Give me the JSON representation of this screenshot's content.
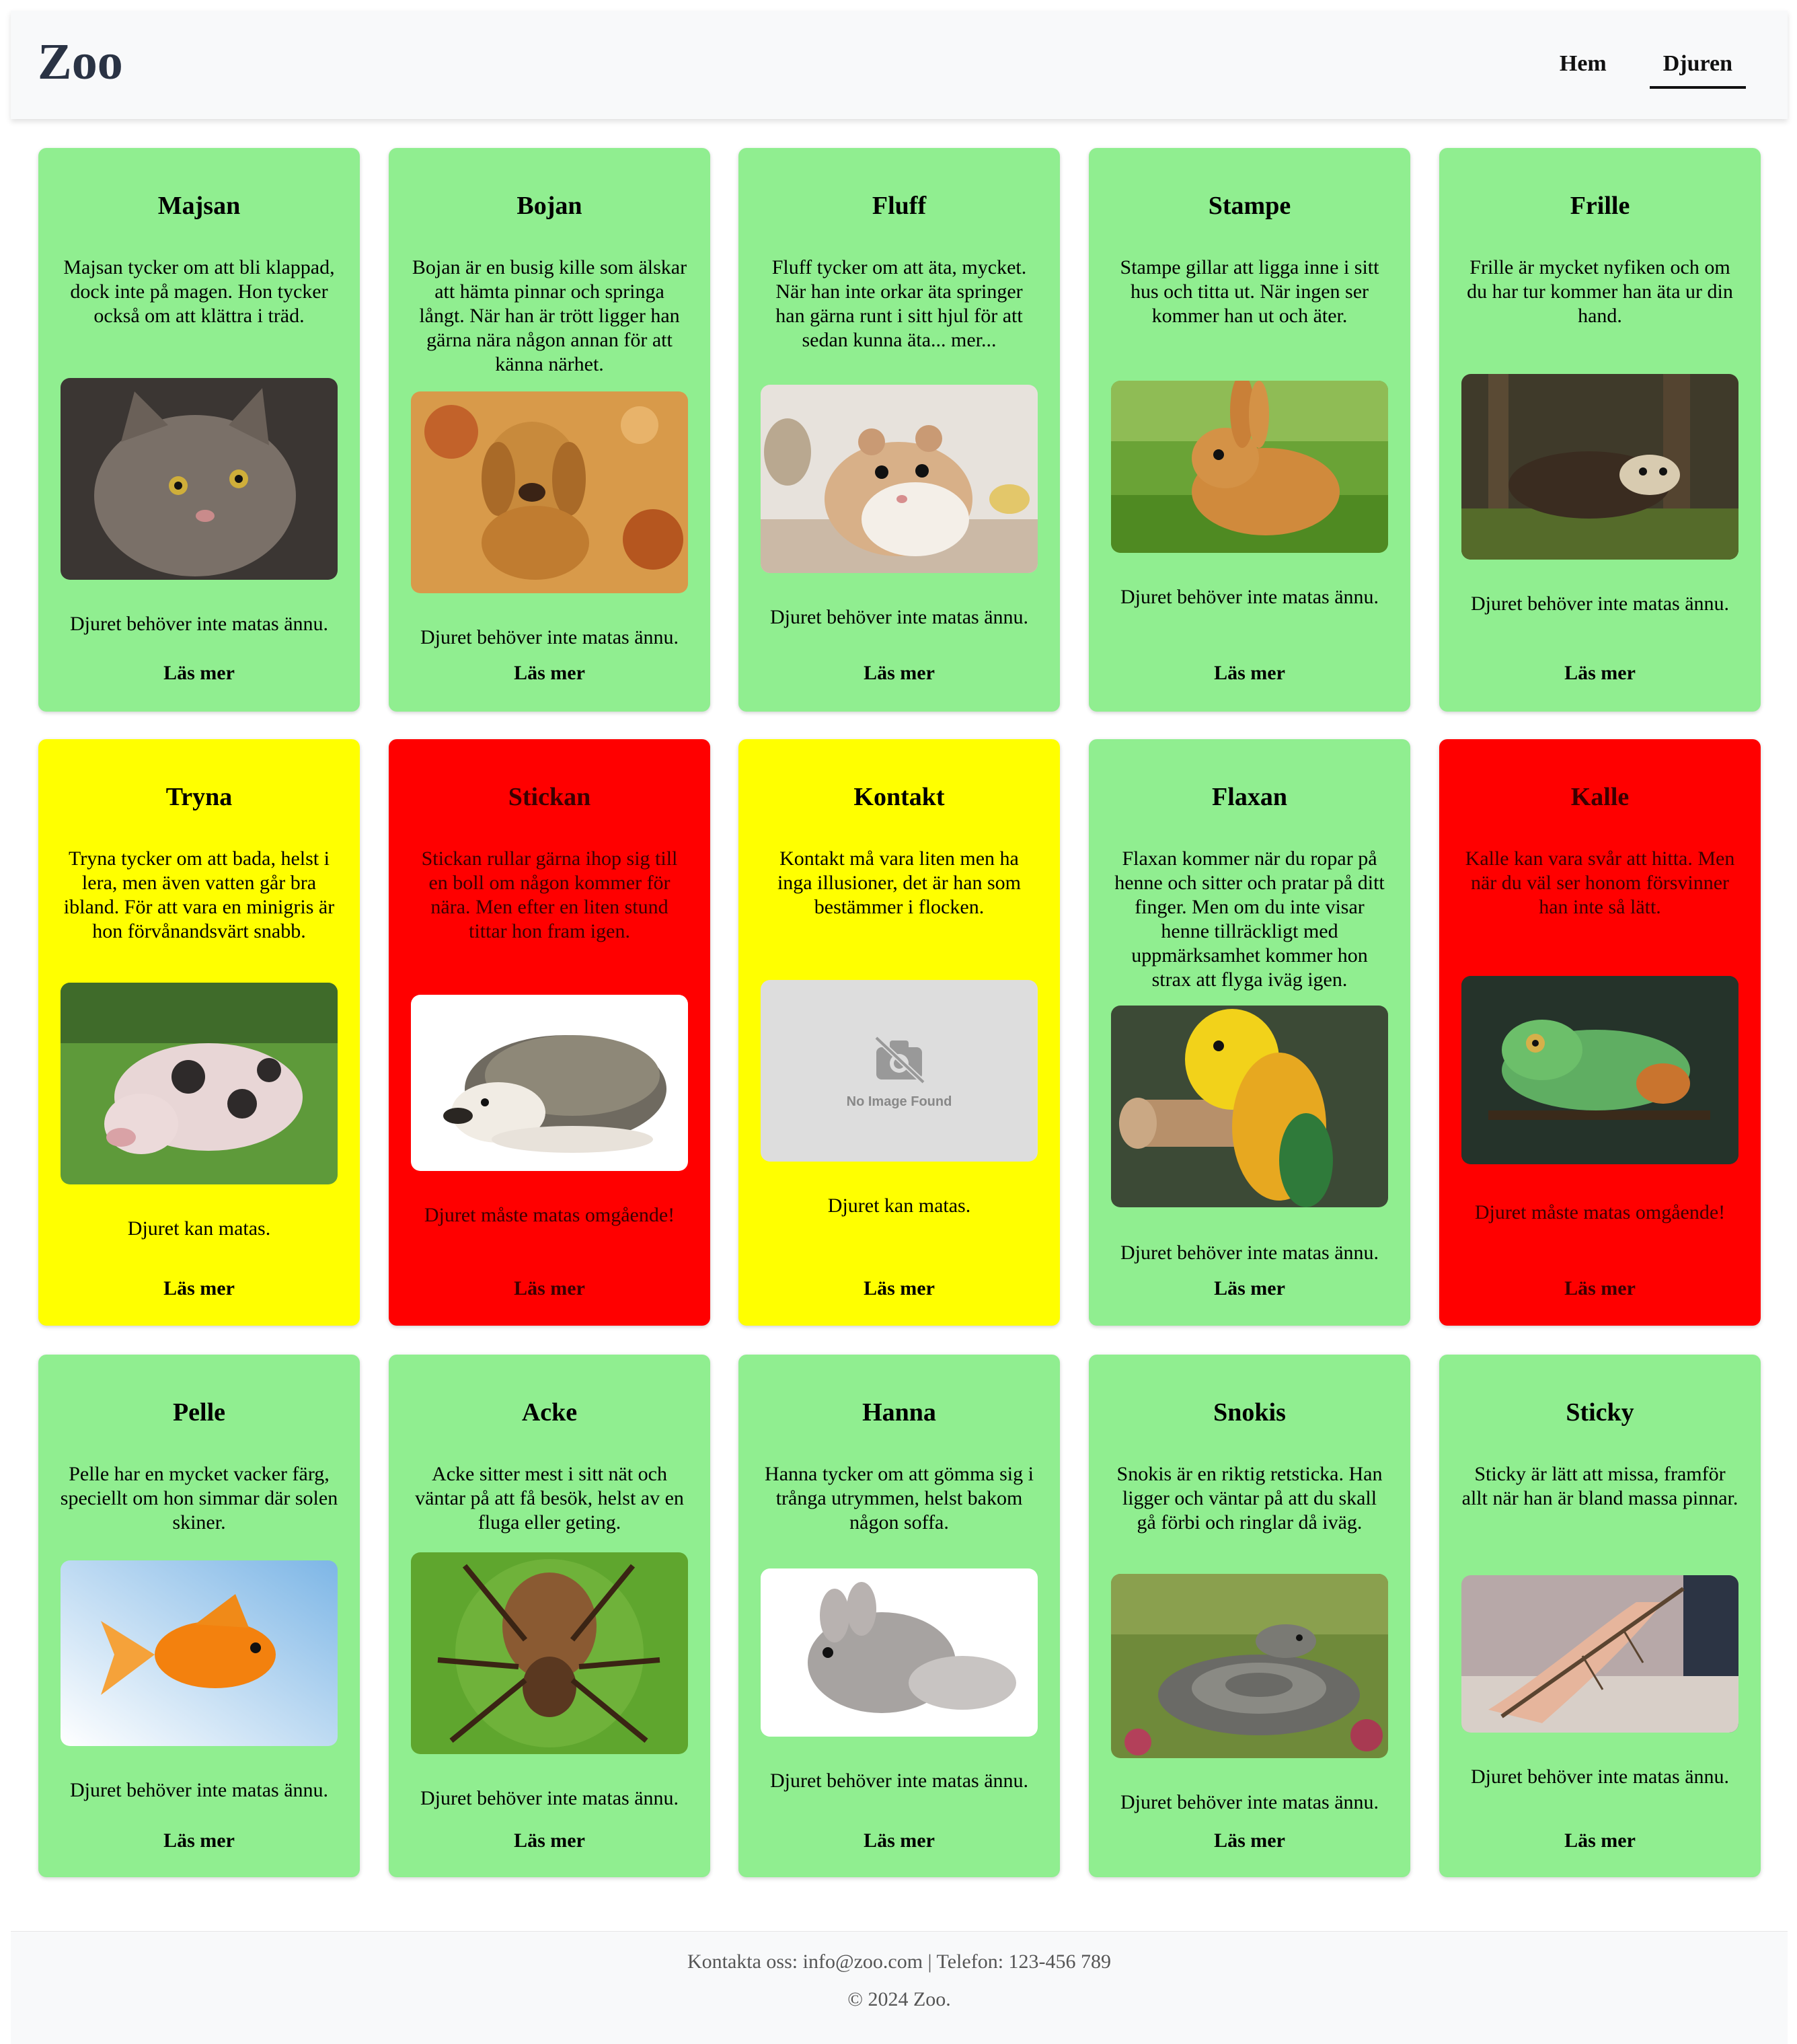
{
  "header": {
    "brand": "Zoo",
    "nav": [
      {
        "label": "Hem",
        "active": false
      },
      {
        "label": "Djuren",
        "active": true
      }
    ]
  },
  "animals": [
    {
      "name": "Majsan",
      "description": "Majsan tycker om att bli klappad, dock inte på magen. Hon tycker också om att klättra i träd.",
      "image": "cat",
      "status": "Djuret behöver inte matas ännu.",
      "link": "Läs mer",
      "color": "#90ee90"
    },
    {
      "name": "Bojan",
      "description": "Bojan är en busig kille som älskar att hämta pinnar och springa långt. När han är trött ligger han gärna nära någon annan för att känna närhet.",
      "image": "dog",
      "status": "Djuret behöver inte matas ännu.",
      "link": "Läs mer",
      "color": "#90ee90"
    },
    {
      "name": "Fluff",
      "description": "Fluff tycker om att äta, mycket. När han inte orkar äta springer han gärna runt i sitt hjul för att sedan kunna äta... mer...",
      "image": "hamster",
      "status": "Djuret behöver inte matas ännu.",
      "link": "Läs mer",
      "color": "#90ee90"
    },
    {
      "name": "Stampe",
      "description": "Stampe gillar att ligga inne i sitt hus och titta ut. När ingen ser kommer han ut och äter.",
      "image": "rabbit",
      "status": "Djuret behöver inte matas ännu.",
      "link": "Läs mer",
      "color": "#90ee90"
    },
    {
      "name": "Frille",
      "description": "Frille är mycket nyfiken och om du har tur kommer han äta ur din hand.",
      "image": "ferret",
      "status": "Djuret behöver inte matas ännu.",
      "link": "Läs mer",
      "color": "#90ee90"
    },
    {
      "name": "Tryna",
      "description": "Tryna tycker om att bada, helst i lera, men även vatten går bra ibland. För att vara en minigris är hon förvånandsvärt snabb.",
      "image": "pig",
      "status": "Djuret kan matas.",
      "link": "Läs mer",
      "color": "#ffff00"
    },
    {
      "name": "Stickan",
      "description": "Stickan rullar gärna ihop sig till en boll om någon kommer för nära. Men efter en liten stund tittar hon fram igen.",
      "image": "hedgehog",
      "status": "Djuret måste matas omgående!",
      "link": "Läs mer",
      "color": "#ff0000"
    },
    {
      "name": "Kontakt",
      "description": "Kontakt må vara liten men ha inga illusioner, det är han som bestämmer i flocken.",
      "image": "no-image",
      "placeholder_text": "No Image Found",
      "status": "Djuret kan matas.",
      "link": "Läs mer",
      "color": "#ffff00"
    },
    {
      "name": "Flaxan",
      "description": "Flaxan kommer när du ropar på henne och sitter och pratar på ditt finger. Men om du inte visar henne tillräckligt med uppmärksamhet kommer hon strax att flyga iväg igen.",
      "image": "parrot",
      "status": "Djuret behöver inte matas ännu.",
      "link": "Läs mer",
      "color": "#90ee90"
    },
    {
      "name": "Kalle",
      "description": "Kalle kan vara svår att hitta. Men när du väl ser honom försvinner han inte så lätt.",
      "image": "chameleon",
      "status": "Djuret måste matas omgående!",
      "link": "Läs mer",
      "color": "#ff0000"
    },
    {
      "name": "Pelle",
      "description": "Pelle har en mycket vacker färg, speciellt om hon simmar där solen skiner.",
      "image": "goldfish",
      "status": "Djuret behöver inte matas ännu.",
      "link": "Läs mer",
      "color": "#90ee90"
    },
    {
      "name": "Acke",
      "description": "Acke sitter mest i sitt nät och väntar på att få besök, helst av en fluga eller geting.",
      "image": "spider",
      "status": "Djuret behöver inte matas ännu.",
      "link": "Läs mer",
      "color": "#90ee90"
    },
    {
      "name": "Hanna",
      "description": "Hanna tycker om att gömma sig i trånga utrymmen, helst bakom någon soffa.",
      "image": "chinchilla",
      "status": "Djuret behöver inte matas ännu.",
      "link": "Läs mer",
      "color": "#90ee90"
    },
    {
      "name": "Snokis",
      "description": "Snokis är en riktig retsticka. Han ligger och väntar på att du skall gå förbi och ringlar då iväg.",
      "image": "snake",
      "status": "Djuret behöver inte matas ännu.",
      "link": "Läs mer",
      "color": "#90ee90"
    },
    {
      "name": "Sticky",
      "description": "Sticky är lätt att missa, framför allt när han är bland massa pinnar.",
      "image": "stick-insect",
      "status": "Djuret behöver inte matas ännu.",
      "link": "Läs mer",
      "color": "#90ee90"
    }
  ],
  "footer": {
    "contact": "Kontakta oss: info@zoo.com | Telefon: 123-456 789",
    "copyright": "© 2024 Zoo."
  }
}
